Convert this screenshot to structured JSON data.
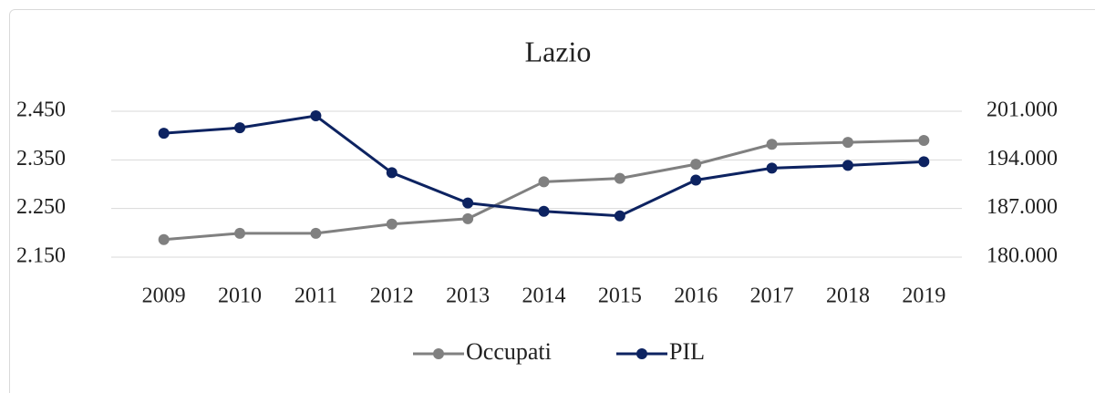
{
  "chart_data": {
    "type": "line",
    "title": "Lazio",
    "categories": [
      "2009",
      "2010",
      "2011",
      "2012",
      "2013",
      "2014",
      "2015",
      "2016",
      "2017",
      "2018",
      "2019"
    ],
    "series": [
      {
        "name": "Occupati",
        "color": "#808080",
        "values": [
          2186,
          2199,
          2199,
          2218,
          2229,
          2305,
          2312,
          2341,
          2382,
          2386,
          2390
        ]
      },
      {
        "name": "PIL",
        "color": "#0d2361",
        "axis": "y2",
        "values": [
          197830,
          198620,
          200340,
          192150,
          187790,
          186600,
          185940,
          191090,
          192810,
          193210,
          193740
        ]
      }
    ],
    "ylim": [
      2150,
      2450
    ],
    "yticks": [
      {
        "value": 2150,
        "label": "2.150"
      },
      {
        "value": 2250,
        "label": "2.250"
      },
      {
        "value": 2350,
        "label": "2.350"
      },
      {
        "value": 2450,
        "label": "2.450"
      }
    ],
    "y2lim": [
      180000,
      201000
    ],
    "y2ticks": [
      {
        "value": 180000,
        "label": "180.000"
      },
      {
        "value": 187000,
        "label": "187.000"
      },
      {
        "value": 194000,
        "label": "194.000"
      },
      {
        "value": 201000,
        "label": "201.000"
      }
    ],
    "grid": true,
    "legend": "bottom"
  }
}
